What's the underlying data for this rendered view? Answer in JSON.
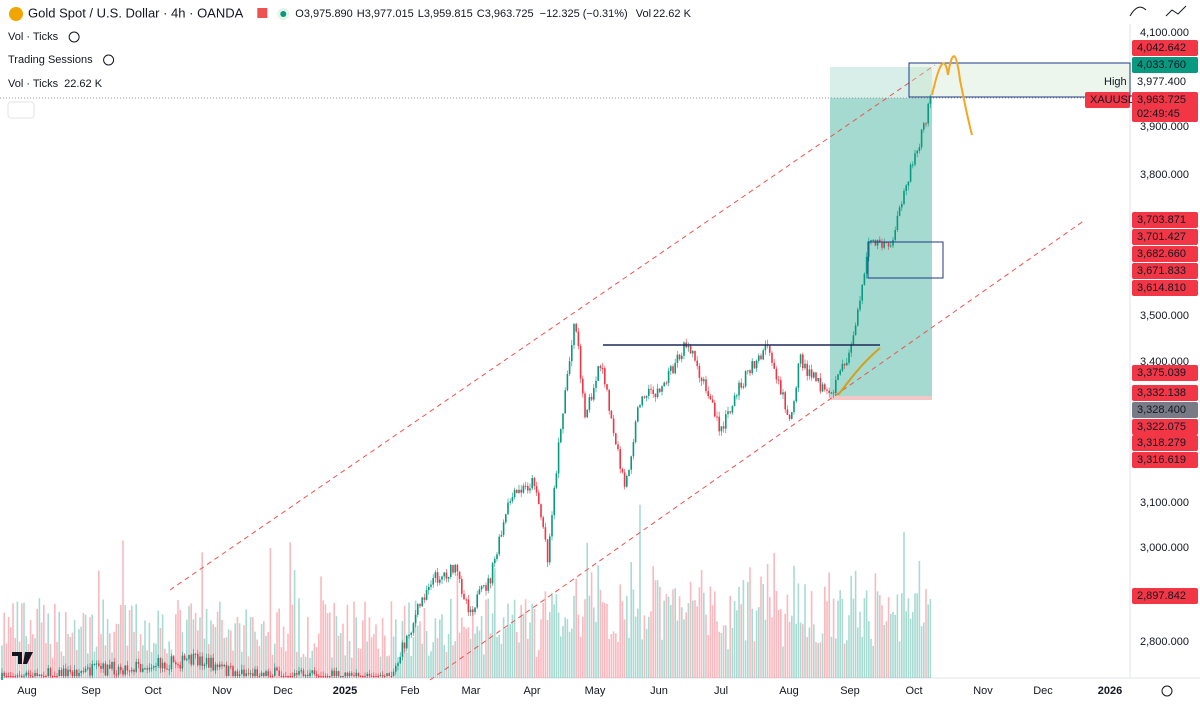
{
  "header": {
    "symbol": "Gold Spot / U.S. Dollar · 4h · OANDA",
    "ohlc": [
      {
        "label": "O",
        "value": "3,975.890"
      },
      {
        "label": "H",
        "value": "3,977.015"
      },
      {
        "label": "L",
        "value": "3,959.815"
      },
      {
        "label": "C",
        "value": "3,963.725"
      }
    ],
    "change": "−12.325 (−0.31%)",
    "volume": {
      "label": "Vol",
      "value": "22.62 K"
    }
  },
  "indicators": [
    {
      "name": "Vol · Ticks"
    },
    {
      "name": "Trading Sessions"
    },
    {
      "name": "Vol · Ticks",
      "value": "22.62 K"
    }
  ],
  "price_axis": [
    "4,100.000",
    "3,900.000",
    "3,800.000",
    "3,500.000",
    "3,400.000",
    "3,100.000",
    "3,000.000",
    "2,800.000"
  ],
  "price_tags": [
    {
      "text": "4,042.642",
      "kind": "red"
    },
    {
      "text": "4,033.760",
      "kind": "green"
    },
    {
      "text": "High",
      "kind": "plain"
    },
    {
      "text": "3,977.400",
      "kind": "white"
    },
    {
      "text": "XAUUSD",
      "kind": "red"
    },
    {
      "text": "3,963.725",
      "kind": "red"
    },
    {
      "text": "02:49:45",
      "kind": "red"
    },
    {
      "text": "3,703.871",
      "kind": "red"
    },
    {
      "text": "3,701.427",
      "kind": "red"
    },
    {
      "text": "3,682.660",
      "kind": "red"
    },
    {
      "text": "3,671.833",
      "kind": "red"
    },
    {
      "text": "3,614.810",
      "kind": "red"
    },
    {
      "text": "3,375.039",
      "kind": "red"
    },
    {
      "text": "3,332.138",
      "kind": "red"
    },
    {
      "text": "3,328.400",
      "kind": "grey"
    },
    {
      "text": "3,322.075",
      "kind": "red"
    },
    {
      "text": "3,318.279",
      "kind": "red"
    },
    {
      "text": "3,316.619",
      "kind": "red"
    },
    {
      "text": "2,897.842",
      "kind": "red"
    }
  ],
  "time_axis": [
    "Aug",
    "Sep",
    "Oct",
    "Nov",
    "Dec",
    "2025",
    "Feb",
    "Mar",
    "Apr",
    "May",
    "Jun",
    "Jul",
    "Aug",
    "Sep",
    "Oct",
    "Nov",
    "Dec",
    "2026"
  ]
}
